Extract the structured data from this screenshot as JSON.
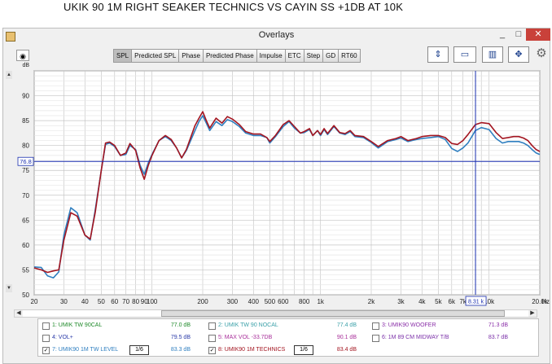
{
  "page_title": "UKIK 90 1M RIGHT SEAKER TECHNICS VS CAYIN SS +1DB AT 10K",
  "window": {
    "title": "Overlays",
    "minimize": "_",
    "maximize": "□",
    "close": "✕"
  },
  "toolbar": {
    "tabs": [
      {
        "label": "SPL",
        "active": true
      },
      {
        "label": "Predicted SPL",
        "active": false
      },
      {
        "label": "Phase",
        "active": false
      },
      {
        "label": "Predicted Phase",
        "active": false
      },
      {
        "label": "Impulse",
        "active": false
      },
      {
        "label": "ETC",
        "active": false
      },
      {
        "label": "Step",
        "active": false
      },
      {
        "label": "GD",
        "active": false
      },
      {
        "label": "RT60",
        "active": false
      }
    ],
    "icons": [
      "vertical-zoom-icon",
      "screen-capture-icon",
      "grid-icon",
      "pan-arrows-icon",
      "gear-icon"
    ]
  },
  "scrollbar_arrows": {
    "up": "▲",
    "down": "▼",
    "left": "◀",
    "right": "▶"
  },
  "cursor": {
    "y_readout": "76.8",
    "x_readout": "8.31 k"
  },
  "chart_data": {
    "type": "line",
    "x_scale": "log",
    "xlim": [
      20,
      20000
    ],
    "ylim": [
      50,
      95
    ],
    "ylabel": "dB",
    "xlabel": "Hz",
    "grid": true,
    "y_ticks": [
      "90",
      "85",
      "80",
      "75",
      "70",
      "65",
      "60",
      "55",
      "50"
    ],
    "x_ticks": [
      {
        "v": 20,
        "t": "20"
      },
      {
        "v": 30,
        "t": "30"
      },
      {
        "v": 40,
        "t": "40"
      },
      {
        "v": 50,
        "t": "50"
      },
      {
        "v": 60,
        "t": "60"
      },
      {
        "v": 70,
        "t": "70"
      },
      {
        "v": 80,
        "t": "80"
      },
      {
        "v": 90,
        "t": "90"
      },
      {
        "v": 100,
        "t": "100"
      },
      {
        "v": 200,
        "t": "200"
      },
      {
        "v": 300,
        "t": "300"
      },
      {
        "v": 400,
        "t": "400"
      },
      {
        "v": 500,
        "t": "500"
      },
      {
        "v": 600,
        "t": "600"
      },
      {
        "v": 800,
        "t": "800"
      },
      {
        "v": 1000,
        "t": "1k"
      },
      {
        "v": 2000,
        "t": "2k"
      },
      {
        "v": 3000,
        "t": "3k"
      },
      {
        "v": 4000,
        "t": "4k"
      },
      {
        "v": 5000,
        "t": "5k"
      },
      {
        "v": 6000,
        "t": "6k"
      },
      {
        "v": 7000,
        "t": "7k"
      },
      {
        "v": 10000,
        "t": "10k"
      },
      {
        "v": 20000,
        "t": "20.0k"
      }
    ],
    "cursor_level_db": 76.8,
    "cursor_freq_hz": 8310,
    "series": [
      {
        "name": "7: UMIK90 1M TW LEVEL",
        "color": "#2f7fc0",
        "points": [
          [
            20,
            55.6
          ],
          [
            22,
            55.5
          ],
          [
            24,
            53.8
          ],
          [
            26,
            53.4
          ],
          [
            28,
            54.6
          ],
          [
            30,
            62
          ],
          [
            33,
            67.5
          ],
          [
            36,
            66.5
          ],
          [
            40,
            62
          ],
          [
            43,
            61
          ],
          [
            46,
            67
          ],
          [
            50,
            75
          ],
          [
            53,
            80.2
          ],
          [
            56,
            80.5
          ],
          [
            60,
            79.8
          ],
          [
            65,
            78
          ],
          [
            70,
            78.2
          ],
          [
            74,
            80
          ],
          [
            80,
            79.2
          ],
          [
            85,
            76
          ],
          [
            90,
            74.2
          ],
          [
            95,
            76.5
          ],
          [
            100,
            78.2
          ],
          [
            110,
            81
          ],
          [
            120,
            81.8
          ],
          [
            130,
            81
          ],
          [
            140,
            79.5
          ],
          [
            150,
            77.5
          ],
          [
            160,
            79
          ],
          [
            180,
            83
          ],
          [
            190,
            84.8
          ],
          [
            200,
            86
          ],
          [
            210,
            84.5
          ],
          [
            220,
            83
          ],
          [
            240,
            84.8
          ],
          [
            260,
            84
          ],
          [
            280,
            85.2
          ],
          [
            300,
            84.8
          ],
          [
            330,
            83.8
          ],
          [
            360,
            82.5
          ],
          [
            400,
            82
          ],
          [
            440,
            82
          ],
          [
            480,
            81.6
          ],
          [
            500,
            80.5
          ],
          [
            540,
            81.8
          ],
          [
            600,
            83.8
          ],
          [
            650,
            84.8
          ],
          [
            700,
            83.5
          ],
          [
            760,
            82.5
          ],
          [
            800,
            82.6
          ],
          [
            860,
            83.2
          ],
          [
            900,
            82
          ],
          [
            960,
            83
          ],
          [
            1000,
            82
          ],
          [
            1050,
            83.2
          ],
          [
            1100,
            82.2
          ],
          [
            1200,
            83.8
          ],
          [
            1300,
            82.5
          ],
          [
            1400,
            82.2
          ],
          [
            1500,
            82.8
          ],
          [
            1600,
            81.8
          ],
          [
            1800,
            81.6
          ],
          [
            2000,
            80.6
          ],
          [
            2200,
            79.5
          ],
          [
            2500,
            80.8
          ],
          [
            2800,
            81.2
          ],
          [
            3000,
            81.5
          ],
          [
            3300,
            80.8
          ],
          [
            3700,
            81.2
          ],
          [
            4000,
            81.4
          ],
          [
            4500,
            81.6
          ],
          [
            5000,
            81.8
          ],
          [
            5500,
            81.2
          ],
          [
            6000,
            79.4
          ],
          [
            6500,
            78.8
          ],
          [
            7000,
            79.5
          ],
          [
            7500,
            80.5
          ],
          [
            8300,
            83
          ],
          [
            9000,
            83.6
          ],
          [
            10000,
            83.2
          ],
          [
            11000,
            81.4
          ],
          [
            12000,
            80.5
          ],
          [
            13000,
            80.8
          ],
          [
            14000,
            80.8
          ],
          [
            15000,
            80.8
          ],
          [
            16000,
            80.5
          ],
          [
            17000,
            80
          ],
          [
            18000,
            79.2
          ],
          [
            19000,
            78.5
          ],
          [
            20000,
            78.2
          ]
        ]
      },
      {
        "name": "8: UMIK90 1M TECHNICS",
        "color": "#a31520",
        "points": [
          [
            20,
            55.4
          ],
          [
            22,
            55
          ],
          [
            24,
            54.5
          ],
          [
            26,
            54.8
          ],
          [
            28,
            55
          ],
          [
            30,
            61
          ],
          [
            33,
            66.5
          ],
          [
            36,
            65.8
          ],
          [
            40,
            62
          ],
          [
            43,
            61.2
          ],
          [
            46,
            66.5
          ],
          [
            50,
            75
          ],
          [
            53,
            80.5
          ],
          [
            56,
            80.7
          ],
          [
            60,
            80
          ],
          [
            65,
            78
          ],
          [
            70,
            78.5
          ],
          [
            74,
            80.4
          ],
          [
            80,
            79
          ],
          [
            85,
            75.5
          ],
          [
            90,
            73.2
          ],
          [
            95,
            76
          ],
          [
            100,
            78
          ],
          [
            110,
            81
          ],
          [
            120,
            82
          ],
          [
            130,
            81.2
          ],
          [
            140,
            79.5
          ],
          [
            150,
            77.5
          ],
          [
            160,
            79.2
          ],
          [
            180,
            84
          ],
          [
            190,
            85.5
          ],
          [
            200,
            86.8
          ],
          [
            210,
            85
          ],
          [
            220,
            83.5
          ],
          [
            240,
            85.5
          ],
          [
            260,
            84.5
          ],
          [
            280,
            85.8
          ],
          [
            300,
            85.3
          ],
          [
            330,
            84.2
          ],
          [
            360,
            82.8
          ],
          [
            400,
            82.3
          ],
          [
            440,
            82.3
          ],
          [
            480,
            81.6
          ],
          [
            500,
            80.8
          ],
          [
            540,
            82
          ],
          [
            600,
            84.2
          ],
          [
            650,
            85
          ],
          [
            700,
            83.8
          ],
          [
            760,
            82.5
          ],
          [
            800,
            82.8
          ],
          [
            860,
            83.4
          ],
          [
            900,
            82
          ],
          [
            960,
            83
          ],
          [
            1000,
            82.2
          ],
          [
            1050,
            83.4
          ],
          [
            1100,
            82.4
          ],
          [
            1200,
            84
          ],
          [
            1300,
            82.6
          ],
          [
            1400,
            82.4
          ],
          [
            1500,
            83
          ],
          [
            1600,
            82
          ],
          [
            1800,
            81.8
          ],
          [
            2000,
            80.8
          ],
          [
            2200,
            79.8
          ],
          [
            2500,
            81
          ],
          [
            2800,
            81.4
          ],
          [
            3000,
            81.8
          ],
          [
            3300,
            81
          ],
          [
            3700,
            81.4
          ],
          [
            4000,
            81.8
          ],
          [
            4500,
            82
          ],
          [
            5000,
            82
          ],
          [
            5500,
            81.6
          ],
          [
            6000,
            80.4
          ],
          [
            6500,
            80.2
          ],
          [
            7000,
            81
          ],
          [
            7500,
            82.2
          ],
          [
            8300,
            84.2
          ],
          [
            9000,
            84.6
          ],
          [
            10000,
            84.4
          ],
          [
            11000,
            82.6
          ],
          [
            12000,
            81.4
          ],
          [
            13000,
            81.6
          ],
          [
            14000,
            81.8
          ],
          [
            15000,
            81.8
          ],
          [
            16000,
            81.5
          ],
          [
            17000,
            81
          ],
          [
            18000,
            80
          ],
          [
            19000,
            79.2
          ],
          [
            20000,
            78.8
          ]
        ]
      }
    ]
  },
  "legend": {
    "items": [
      {
        "checked": false,
        "label": "1: UMIK TW 90CAL",
        "value": "77.0 dB",
        "color": "#1f8a2a",
        "smoothing": ""
      },
      {
        "checked": false,
        "label": "2: UMIK TW 90 NOCAL",
        "value": "77.4 dB",
        "color": "#3aa0a8",
        "smoothing": ""
      },
      {
        "checked": false,
        "label": "3: UMIK90 WOOFER",
        "value": "71.3 dB",
        "color": "#8a2fa8",
        "smoothing": ""
      },
      {
        "checked": false,
        "label": "4: VOL+",
        "value": "79.5 dB",
        "color": "#2a3aa8",
        "smoothing": ""
      },
      {
        "checked": false,
        "label": "5: MAX VOL -33.7DB",
        "value": "90.1 dB",
        "color": "#a82f9a",
        "smoothing": ""
      },
      {
        "checked": false,
        "label": "6: 1M 89 CM MIDWAY T/B",
        "value": "83.7 dB",
        "color": "#7a2fa8",
        "smoothing": ""
      },
      {
        "checked": true,
        "label": "7: UMIK90 1M TW LEVEL",
        "value": "83.3 dB",
        "color": "#2f7fc0",
        "smoothing": "1/6"
      },
      {
        "checked": true,
        "label": "8: UMIK90 1M TECHNICS",
        "value": "83.4 dB",
        "color": "#a31520",
        "smoothing": "1/6"
      }
    ]
  }
}
